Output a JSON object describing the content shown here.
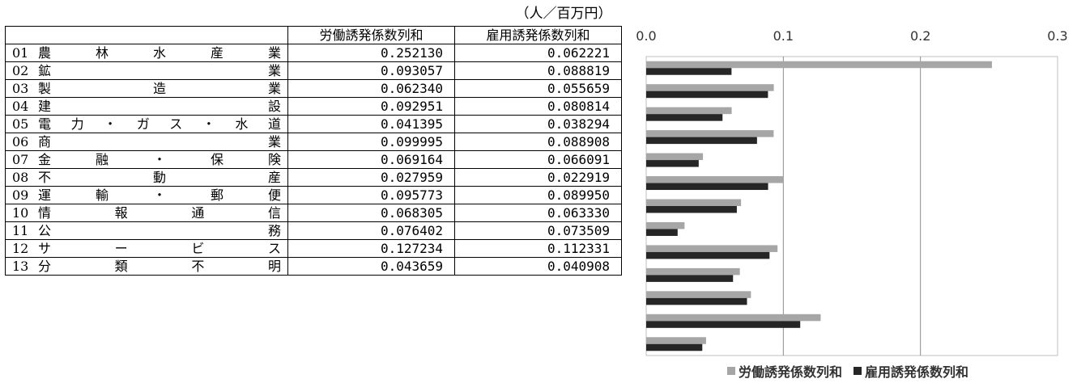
{
  "unit_label": "（人／百万円）",
  "table": {
    "columns": [
      "",
      "労働誘発係数列和",
      "雇用誘発係数列和"
    ],
    "rows": [
      {
        "code": "01",
        "name": "農林水産業",
        "labor": "0.252130",
        "employment": "0.062221"
      },
      {
        "code": "02",
        "name": "鉱業",
        "labor": "0.093057",
        "employment": "0.088819"
      },
      {
        "code": "03",
        "name": "製造業",
        "labor": "0.062340",
        "employment": "0.055659"
      },
      {
        "code": "04",
        "name": "建設",
        "labor": "0.092951",
        "employment": "0.080814"
      },
      {
        "code": "05",
        "name": "電力・ガス・水道",
        "labor": "0.041395",
        "employment": "0.038294"
      },
      {
        "code": "06",
        "name": "商業",
        "labor": "0.099995",
        "employment": "0.088908"
      },
      {
        "code": "07",
        "name": "金融・保険",
        "labor": "0.069164",
        "employment": "0.066091"
      },
      {
        "code": "08",
        "name": "不動産",
        "labor": "0.027959",
        "employment": "0.022919"
      },
      {
        "code": "09",
        "name": "運輸・郵便",
        "labor": "0.095773",
        "employment": "0.089950"
      },
      {
        "code": "10",
        "name": "情報通信",
        "labor": "0.068305",
        "employment": "0.063330"
      },
      {
        "code": "11",
        "name": "公務",
        "labor": "0.076402",
        "employment": "0.073509"
      },
      {
        "code": "12",
        "name": "サービス",
        "labor": "0.127234",
        "employment": "0.112331"
      },
      {
        "code": "13",
        "name": "分類不明",
        "labor": "0.043659",
        "employment": "0.040908"
      }
    ]
  },
  "chart_data": {
    "type": "bar",
    "orientation": "horizontal",
    "categories": [
      "01",
      "02",
      "03",
      "04",
      "05",
      "06",
      "07",
      "08",
      "09",
      "10",
      "11",
      "12",
      "13"
    ],
    "series": [
      {
        "name": "労働誘発係数列和",
        "color": "#a6a6a6",
        "values": [
          0.25213,
          0.093057,
          0.06234,
          0.092951,
          0.041395,
          0.099995,
          0.069164,
          0.027959,
          0.095773,
          0.068305,
          0.076402,
          0.127234,
          0.043659
        ]
      },
      {
        "name": "雇用誘発係数列和",
        "color": "#262626",
        "values": [
          0.062221,
          0.088819,
          0.055659,
          0.080814,
          0.038294,
          0.088908,
          0.066091,
          0.022919,
          0.08995,
          0.06333,
          0.073509,
          0.112331,
          0.040908
        ]
      }
    ],
    "xlim": [
      0,
      0.3
    ],
    "xticks": [
      "0.0",
      "0.1",
      "0.2",
      "0.3"
    ],
    "grid": true,
    "legend_position": "bottom"
  }
}
